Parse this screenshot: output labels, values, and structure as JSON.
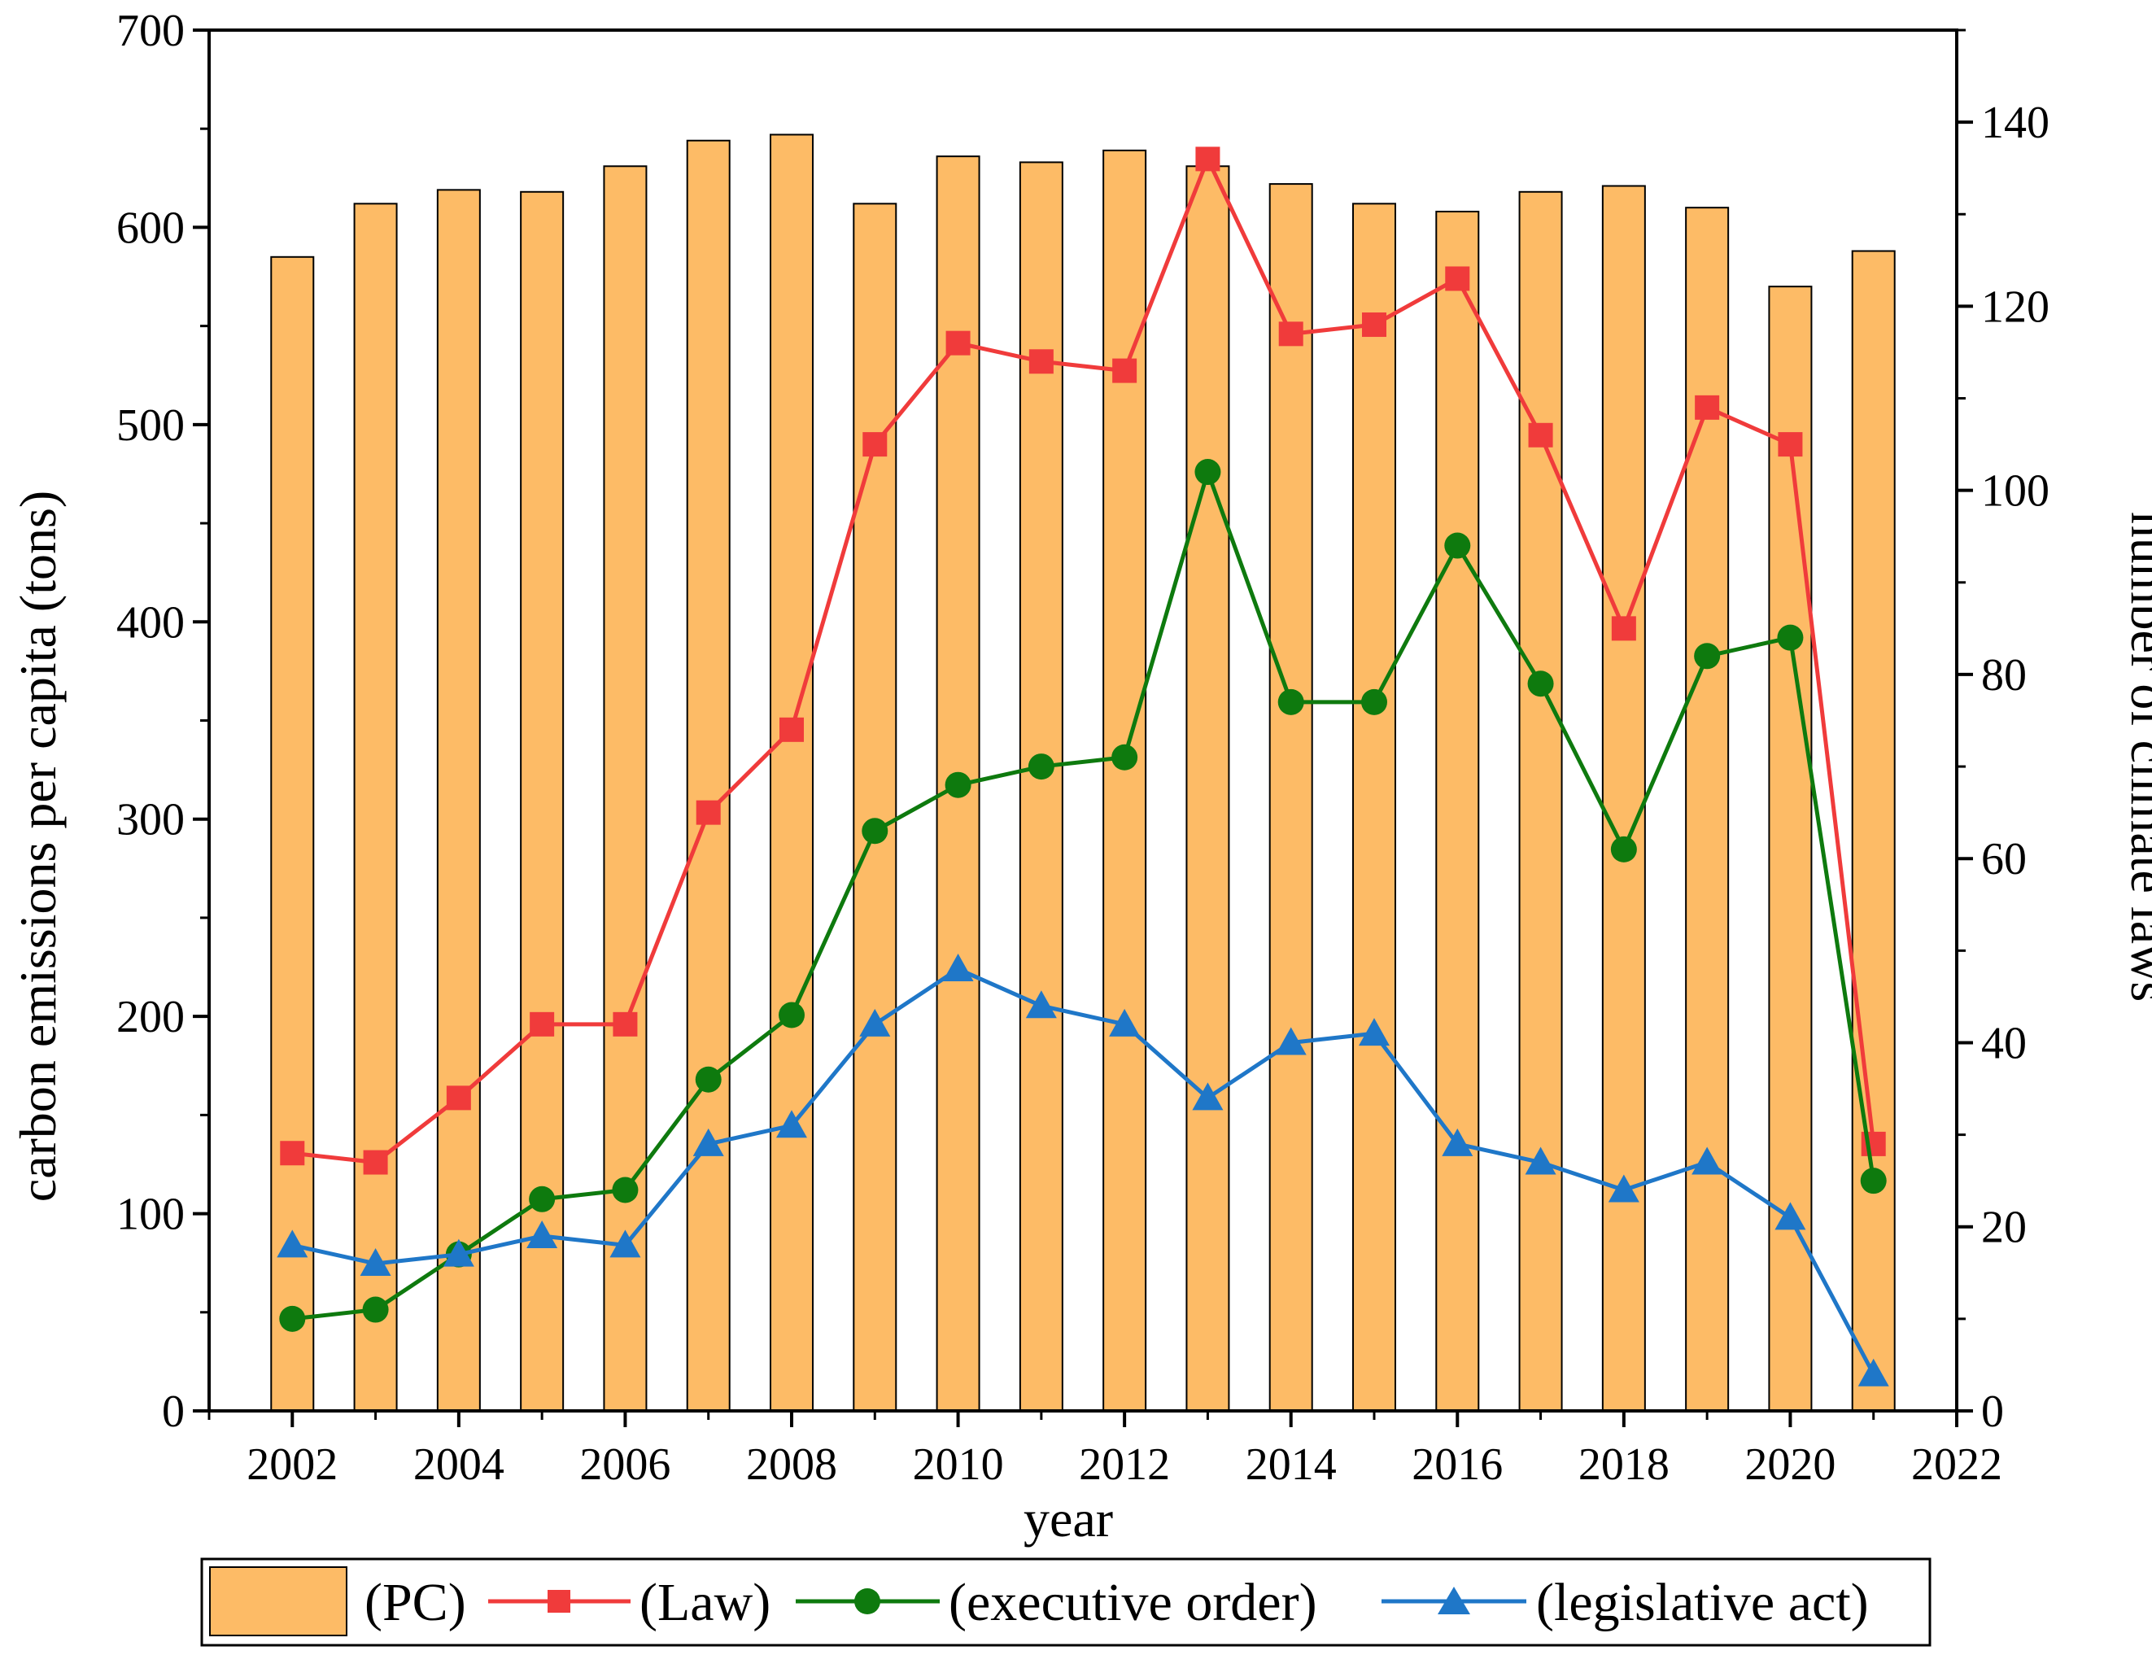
{
  "chart_data": {
    "type": "bar+line",
    "x": [
      2002,
      2003,
      2004,
      2005,
      2006,
      2007,
      2008,
      2009,
      2010,
      2011,
      2012,
      2013,
      2014,
      2015,
      2016,
      2017,
      2018,
      2019,
      2020,
      2021
    ],
    "bars": {
      "name": "(PC)",
      "axis": "left",
      "color": "#FDBB66",
      "values": [
        585,
        612,
        619,
        618,
        631,
        644,
        647,
        612,
        636,
        633,
        639,
        631,
        622,
        612,
        608,
        618,
        621,
        610,
        570,
        588
      ]
    },
    "series": [
      {
        "name": "(Law)",
        "axis": "right",
        "color": "#F03B3B",
        "marker": "square",
        "values": [
          28,
          27,
          34,
          42,
          42,
          65,
          74,
          105,
          116,
          114,
          113,
          136,
          117,
          118,
          123,
          106,
          85,
          109,
          105,
          29
        ]
      },
      {
        "name": "(executive order)",
        "axis": "right",
        "color": "#0E7A0E",
        "marker": "circle",
        "values": [
          10,
          11,
          17,
          23,
          24,
          36,
          43,
          63,
          68,
          70,
          71,
          102,
          77,
          77,
          94,
          79,
          61,
          82,
          84,
          25
        ]
      },
      {
        "name": "(legislative act)",
        "axis": "right",
        "color": "#1F77C8",
        "marker": "triangle",
        "values": [
          18,
          16,
          17,
          19,
          18,
          29,
          31,
          42,
          48,
          44,
          42,
          34,
          40,
          41,
          29,
          27,
          24,
          27,
          21,
          4
        ]
      }
    ],
    "xlabel": "year",
    "ylabel": "carbon emissions per capita (tons)",
    "y2label": "number of climate laws",
    "xlim": [
      2001,
      2022
    ],
    "ylim": [
      0,
      700
    ],
    "y2lim": [
      0,
      150
    ],
    "x_ticks": [
      "2002",
      "2004",
      "2006",
      "2008",
      "2010",
      "2012",
      "2014",
      "2016",
      "2018",
      "2020",
      "2022"
    ],
    "y_ticks": [
      "0",
      "100",
      "200",
      "300",
      "400",
      "500",
      "600",
      "700"
    ],
    "y2_ticks": [
      "0",
      "20",
      "40",
      "60",
      "80",
      "100",
      "120",
      "140"
    ],
    "legend": [
      "(PC)",
      "(Law)",
      "(executive order)",
      "(legislative act)"
    ],
    "legend_position": "bottom"
  }
}
